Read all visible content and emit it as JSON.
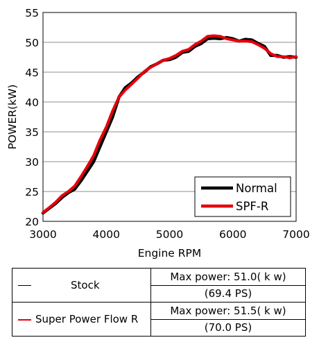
{
  "chart_data": {
    "type": "line",
    "xlabel": "Engine RPM",
    "ylabel": "POWER(kW)",
    "xlim": [
      3000,
      7000
    ],
    "ylim": [
      20,
      55
    ],
    "xticks": [
      3000,
      4000,
      5000,
      6000,
      7000
    ],
    "yticks": [
      20,
      25,
      30,
      35,
      40,
      45,
      50,
      55
    ],
    "grid": "horizontal",
    "legend_position": "bottom-right",
    "series": [
      {
        "name": "Normal",
        "color": "#000000",
        "x": [
          3000,
          3100,
          3200,
          3300,
          3400,
          3500,
          3600,
          3700,
          3800,
          3900,
          4000,
          4100,
          4200,
          4300,
          4400,
          4500,
          4600,
          4700,
          4800,
          4900,
          5000,
          5100,
          5200,
          5300,
          5400,
          5500,
          5600,
          5700,
          5800,
          5900,
          6000,
          6100,
          6200,
          6300,
          6400,
          6500,
          6600,
          6700,
          6800,
          6900,
          7000
        ],
        "y": [
          21.4,
          22.2,
          23.0,
          24.0,
          24.8,
          25.4,
          26.8,
          28.4,
          30.0,
          32.5,
          35.0,
          37.5,
          40.8,
          42.4,
          43.2,
          44.2,
          45.0,
          45.9,
          46.4,
          47.0,
          47.1,
          47.5,
          48.3,
          48.5,
          49.3,
          49.8,
          50.6,
          50.7,
          50.6,
          50.8,
          50.6,
          50.2,
          50.5,
          50.4,
          49.8,
          49.3,
          47.8,
          47.8,
          47.5,
          47.6,
          47.5
        ]
      },
      {
        "name": "SPF-R",
        "color": "#e8000b",
        "x": [
          3000,
          3100,
          3200,
          3300,
          3400,
          3500,
          3600,
          3700,
          3800,
          3900,
          4000,
          4100,
          4200,
          4300,
          4400,
          4500,
          4600,
          4700,
          4800,
          4900,
          5000,
          5100,
          5200,
          5300,
          5400,
          5500,
          5600,
          5700,
          5800,
          5900,
          6000,
          6100,
          6200,
          6300,
          6400,
          6500,
          6600,
          6700,
          6800,
          6900,
          7000
        ],
        "y": [
          21.5,
          22.3,
          23.2,
          24.3,
          25.0,
          25.9,
          27.5,
          29.2,
          31.0,
          33.6,
          35.8,
          38.5,
          40.8,
          42.0,
          43.0,
          44.0,
          45.1,
          45.8,
          46.4,
          47.0,
          47.3,
          47.8,
          48.5,
          48.8,
          49.6,
          50.2,
          51.0,
          51.1,
          51.0,
          50.6,
          50.4,
          50.2,
          50.2,
          50.1,
          49.6,
          49.0,
          48.1,
          47.6,
          47.6,
          47.4,
          47.6
        ]
      }
    ]
  },
  "table": {
    "rows": [
      {
        "name": "Stock",
        "swatch_color": "#000000",
        "max_power": "Max power: 51.0( k w)",
        "ps": "(69.4 PS)"
      },
      {
        "name": "Super Power Flow R",
        "swatch_color": "#e8000b",
        "max_power": "Max power: 51.5( k w)",
        "ps": "(70.0 PS)"
      }
    ]
  }
}
